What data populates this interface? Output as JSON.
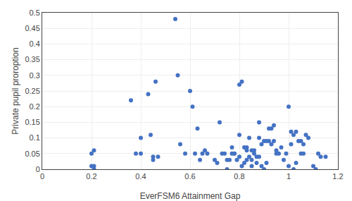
{
  "chart_data": {
    "type": "scatter",
    "xlabel": "EverFSM6 Attainment Gap",
    "ylabel": "Private pupil proroption",
    "color": "#4472C4",
    "grid": true,
    "xlim": [
      0,
      1.2
    ],
    "ylim": [
      0,
      0.5
    ],
    "xticks": [
      0,
      0.2,
      0.4,
      0.6,
      0.8,
      1,
      1.2
    ],
    "yticks": [
      0,
      0.05,
      0.1,
      0.15,
      0.2,
      0.25,
      0.3,
      0.35,
      0.4,
      0.45,
      0.5
    ],
    "x": [
      0.2,
      0.2,
      0.21,
      0.21,
      0.21,
      0.36,
      0.38,
      0.4,
      0.4,
      0.43,
      0.44,
      0.45,
      0.45,
      0.46,
      0.47,
      0.54,
      0.55,
      0.56,
      0.58,
      0.6,
      0.61,
      0.62,
      0.63,
      0.64,
      0.65,
      0.66,
      0.67,
      0.7,
      0.71,
      0.72,
      0.73,
      0.74,
      0.75,
      0.75,
      0.76,
      0.77,
      0.77,
      0.78,
      0.78,
      0.79,
      0.8,
      0.8,
      0.8,
      0.81,
      0.81,
      0.82,
      0.82,
      0.83,
      0.83,
      0.83,
      0.84,
      0.84,
      0.85,
      0.85,
      0.85,
      0.86,
      0.86,
      0.87,
      0.87,
      0.88,
      0.88,
      0.88,
      0.89,
      0.89,
      0.9,
      0.9,
      0.91,
      0.91,
      0.92,
      0.92,
      0.93,
      0.93,
      0.94,
      0.94,
      0.95,
      0.95,
      0.96,
      0.97,
      0.98,
      0.99,
      1.0,
      1.0,
      1.01,
      1.01,
      1.02,
      1.02,
      1.03,
      1.03,
      1.04,
      1.05,
      1.05,
      1.06,
      1.06,
      1.07,
      1.08,
      1.1,
      1.11,
      1.12,
      1.13,
      1.15
    ],
    "values": [
      0.05,
      0.01,
      0.06,
      0.01,
      0.0,
      0.22,
      0.05,
      0.1,
      0.05,
      0.24,
      0.11,
      0.03,
      0.04,
      0.28,
      0.04,
      0.48,
      0.3,
      0.08,
      0.05,
      0.25,
      0.2,
      0.05,
      0.13,
      0.03,
      0.05,
      0.06,
      0.05,
      0.03,
      0.02,
      0.15,
      0.05,
      0.05,
      0.0,
      0.03,
      0.03,
      0.07,
      0.05,
      0.05,
      0.05,
      0.03,
      0.11,
      0.04,
      0.27,
      0.01,
      0.28,
      0.07,
      0.02,
      0.06,
      0.07,
      0.03,
      0.04,
      0.1,
      0.01,
      0.03,
      0.06,
      0.06,
      0.05,
      0.02,
      0.04,
      0.04,
      0.1,
      0.15,
      0.01,
      0.08,
      0.09,
      0.0,
      0.02,
      0.09,
      0.09,
      0.13,
      0.08,
      0.13,
      0.09,
      0.14,
      0.05,
      0.06,
      0.05,
      0.07,
      0.03,
      0.05,
      0.2,
      0.01,
      0.12,
      0.08,
      0.11,
      0.0,
      0.02,
      0.12,
      0.09,
      0.09,
      0.05,
      0.08,
      0.05,
      0.11,
      0.1,
      0.01,
      0.0,
      0.05,
      0.04,
      0.04
    ]
  }
}
